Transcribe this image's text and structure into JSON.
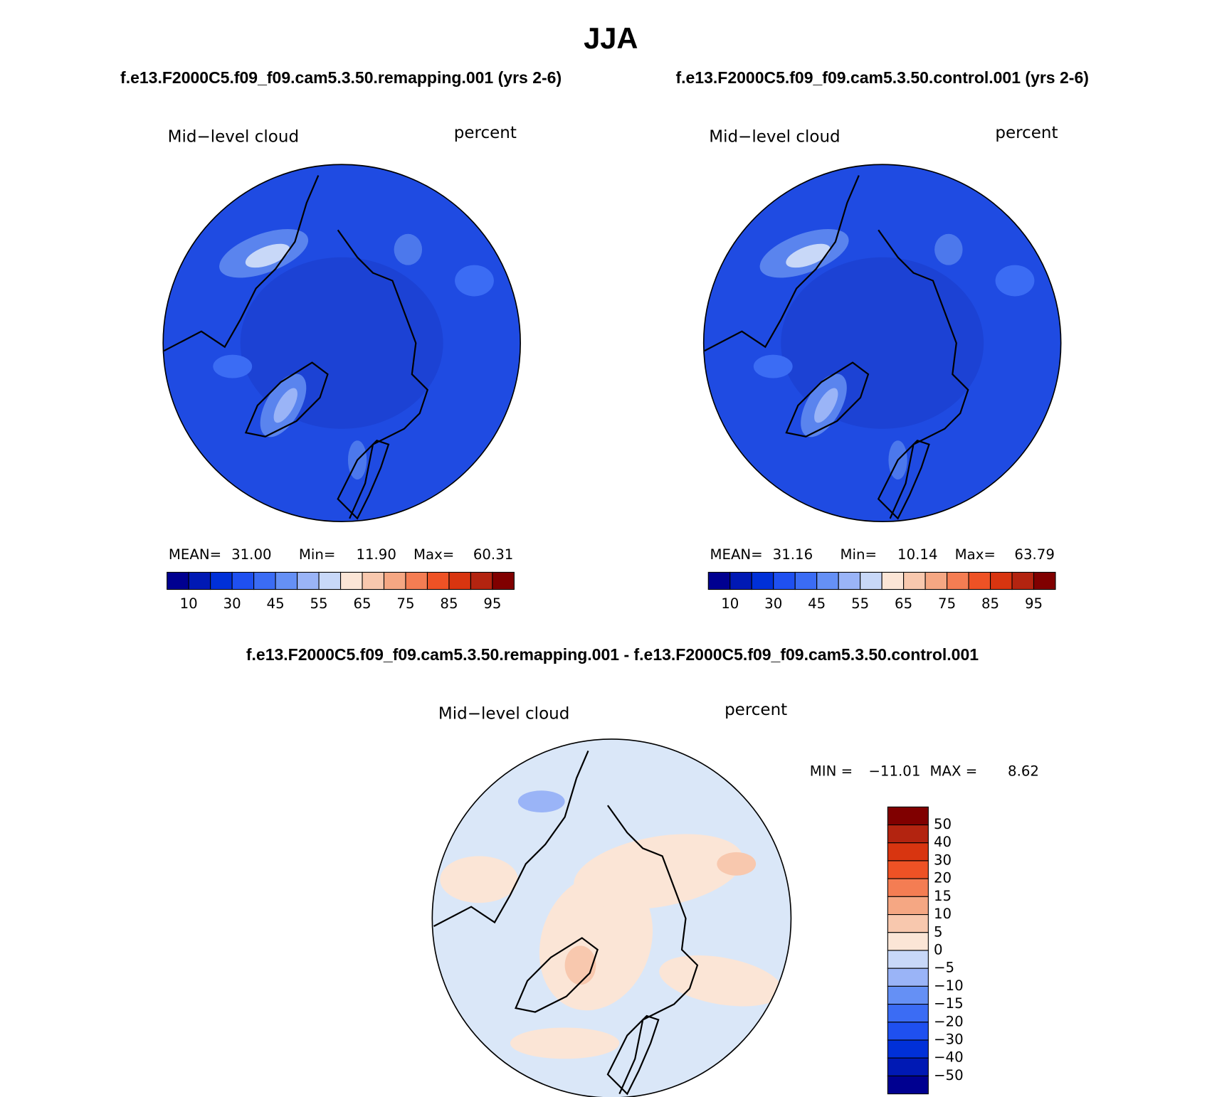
{
  "title": "JJA",
  "panels": [
    {
      "subtitle": "f.e13.F2000C5.f09_f09.cam5.3.50.remapping.001 (yrs 2-6)",
      "variable": "Mid−level cloud",
      "units": "percent",
      "stats": [
        {
          "label": "MEAN=",
          "value": "31.00"
        },
        {
          "label": "Min=",
          "value": "11.90"
        },
        {
          "label": "Max=",
          "value": "60.31"
        }
      ],
      "colorbar": {
        "colors": [
          "#000090",
          "#0019b4",
          "#0030d8",
          "#1f50f0",
          "#3b6cf4",
          "#6590f5",
          "#9ab4f7",
          "#c8d8f8",
          "#fbe5d6",
          "#f8c8ae",
          "#f5a783",
          "#f47d53",
          "#ee5225",
          "#d83510",
          "#b32410",
          "#800000"
        ],
        "labels": [
          10,
          30,
          45,
          55,
          65,
          75,
          85,
          95
        ]
      }
    },
    {
      "subtitle": "f.e13.F2000C5.f09_f09.cam5.3.50.control.001 (yrs 2-6)",
      "variable": "Mid−level cloud",
      "units": "percent",
      "stats": [
        {
          "label": "MEAN=",
          "value": "31.16"
        },
        {
          "label": "Min=",
          "value": "10.14"
        },
        {
          "label": "Max=",
          "value": "63.79"
        }
      ],
      "colorbar": {
        "colors": [
          "#000090",
          "#0019b4",
          "#0030d8",
          "#1f50f0",
          "#3b6cf4",
          "#6590f5",
          "#9ab4f7",
          "#c8d8f8",
          "#fbe5d6",
          "#f8c8ae",
          "#f5a783",
          "#f47d53",
          "#ee5225",
          "#d83510",
          "#b32410",
          "#800000"
        ],
        "labels": [
          10,
          30,
          45,
          55,
          65,
          75,
          85,
          95
        ]
      }
    }
  ],
  "difference": {
    "subtitle": "f.e13.F2000C5.f09_f09.cam5.3.50.remapping.001 - f.e13.F2000C5.f09_f09.cam5.3.50.control.001",
    "variable": "Mid−level cloud",
    "units": "percent",
    "stats": [
      {
        "label": "MIN =",
        "value": "−11.01"
      },
      {
        "label": "MAX =",
        "value": "8.62"
      }
    ],
    "colorbar": {
      "colors": [
        "#800000",
        "#b32410",
        "#d83510",
        "#ee5225",
        "#f47d53",
        "#f5a783",
        "#f8c8ae",
        "#fbe5d6",
        "#c8d8f8",
        "#9ab4f7",
        "#6590f5",
        "#3b6cf4",
        "#1f50f0",
        "#0030d8",
        "#0019b4",
        "#000090"
      ],
      "labels": [
        50,
        40,
        30,
        20,
        15,
        10,
        5,
        0,
        {
          "value": -5,
          "label": "−5"
        },
        {
          "value": -10,
          "label": "−10"
        },
        {
          "value": -15,
          "label": "−15"
        },
        {
          "value": -20,
          "label": "−20"
        },
        {
          "value": -30,
          "label": "−30"
        },
        {
          "value": -40,
          "label": "−40"
        },
        {
          "value": -50,
          "label": "−50"
        }
      ]
    }
  }
}
